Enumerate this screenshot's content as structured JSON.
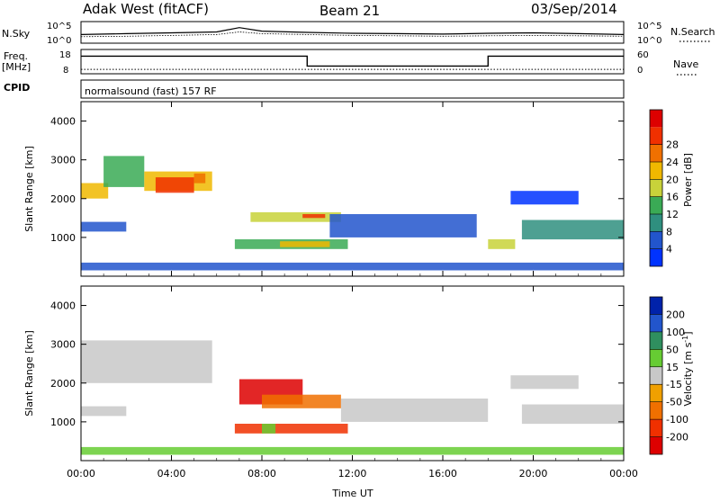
{
  "header": {
    "station": "Adak West (fitACF)",
    "beam": "Beam 21",
    "date": "03/Sep/2014"
  },
  "strip_panels": {
    "nsky_label": "N.Sky",
    "nsky_ticks": [
      "10^5",
      "10^0"
    ],
    "nsearch_label": "N.Search",
    "freq_label_line1": "Freq.",
    "freq_label_line2": "[MHz]",
    "freq_ticks": [
      "18",
      "8"
    ],
    "nave_label": "Nave",
    "nave_ticks": [
      "60",
      "0"
    ],
    "cpid_label": "CPID",
    "cpid_text": "normalsound (fast) 157 RF"
  },
  "colors": {
    "power_scale": [
      "#0033ff",
      "#2255cc",
      "#2f8f7f",
      "#3aaa55",
      "#c8d23a",
      "#f0b800",
      "#f07000",
      "#f03000",
      "#dd0000"
    ],
    "velocity_scale": [
      "#dd0000",
      "#f03000",
      "#f07000",
      "#f0a000",
      "#c8c8c8",
      "#66cc33",
      "#2f8f5f",
      "#2255cc",
      "#0022aa"
    ]
  },
  "chart_data": [
    {
      "type": "line",
      "panel": "sky-noise",
      "ylabel": "N.Sky",
      "x": [
        "00:00",
        "02:00",
        "04:00",
        "06:00",
        "07:00",
        "08:00",
        "10:00",
        "12:00",
        "14:00",
        "16:00",
        "18:00",
        "20:00",
        "22:00",
        "24:00"
      ],
      "series": [
        {
          "values": [
            2.0,
            2.2,
            2.4,
            2.6,
            3.6,
            2.8,
            2.5,
            2.3,
            2.2,
            2.1,
            2.3,
            2.4,
            2.2,
            2.0
          ]
        },
        {
          "values": [
            1.5,
            1.6,
            1.8,
            2.0,
            2.6,
            2.2,
            2.0,
            1.8,
            1.7,
            1.6,
            1.7,
            1.8,
            1.7,
            1.6
          ]
        }
      ],
      "ylim": [
        0,
        5
      ]
    },
    {
      "type": "line",
      "panel": "frequency",
      "ylabel": "Freq. [MHz]",
      "x": [
        0,
        10,
        10,
        18,
        18,
        24
      ],
      "series": [
        {
          "values": [
            15,
            15,
            10.5,
            10.5,
            15,
            15
          ]
        },
        {
          "values": [
            9,
            9,
            9,
            9,
            9,
            9
          ]
        }
      ],
      "ylim": [
        7,
        18
      ]
    },
    {
      "type": "heatmap",
      "panel": "power",
      "ylabel": "Slant Range [km]",
      "colorbar_label": "Power [dB]",
      "colorbar_ticks": [
        "4",
        "8",
        "12",
        "16",
        "20",
        "24",
        "28"
      ],
      "ylim": [
        0,
        4500
      ],
      "y_ticks": [
        "1000",
        "2000",
        "3000",
        "4000"
      ],
      "regions": [
        {
          "t0": 0.0,
          "t1": 1.2,
          "r0": 2000,
          "r1": 2400,
          "level": 5
        },
        {
          "t0": 1.0,
          "t1": 2.8,
          "r0": 2300,
          "r1": 3100,
          "level": 3
        },
        {
          "t0": 2.8,
          "t1": 5.8,
          "r0": 2200,
          "r1": 2700,
          "level": 5
        },
        {
          "t0": 3.3,
          "t1": 5.0,
          "r0": 2150,
          "r1": 2550,
          "level": 7
        },
        {
          "t0": 5.0,
          "t1": 5.5,
          "r0": 2400,
          "r1": 2650,
          "level": 6
        },
        {
          "t0": 0.0,
          "t1": 2.0,
          "r0": 1150,
          "r1": 1400,
          "level": 1
        },
        {
          "t0": 6.8,
          "t1": 11.8,
          "r0": 700,
          "r1": 950,
          "level": 3
        },
        {
          "t0": 8.8,
          "t1": 11.0,
          "r0": 750,
          "r1": 900,
          "level": 5
        },
        {
          "t0": 7.5,
          "t1": 11.5,
          "r0": 1400,
          "r1": 1650,
          "level": 4
        },
        {
          "t0": 9.8,
          "t1": 10.8,
          "r0": 1500,
          "r1": 1600,
          "level": 7
        },
        {
          "t0": 11.0,
          "t1": 17.5,
          "r0": 1000,
          "r1": 1600,
          "level": 1
        },
        {
          "t0": 18.0,
          "t1": 19.2,
          "r0": 700,
          "r1": 950,
          "level": 4
        },
        {
          "t0": 19.5,
          "t1": 24.0,
          "r0": 950,
          "r1": 1450,
          "level": 2
        },
        {
          "t0": 19.0,
          "t1": 22.0,
          "r0": 1850,
          "r1": 2200,
          "level": 0
        },
        {
          "t0": 0.0,
          "t1": 24.0,
          "r0": 150,
          "r1": 350,
          "level": 1
        }
      ]
    },
    {
      "type": "heatmap",
      "panel": "velocity",
      "ylabel": "Slant Range [km]",
      "colorbar_label": "Velocity [m s",
      "colorbar_label_sup": "-1",
      "colorbar_label_end": "]",
      "colorbar_ticks": [
        "-200",
        "-100",
        "-50",
        "-15",
        "15",
        "50",
        "100",
        "200"
      ],
      "ylim": [
        0,
        4500
      ],
      "y_ticks": [
        "1000",
        "2000",
        "3000",
        "4000"
      ],
      "regions": [
        {
          "t0": 0.0,
          "t1": 5.8,
          "r0": 2000,
          "r1": 3100,
          "level": 4
        },
        {
          "t0": 0.0,
          "t1": 2.0,
          "r0": 1150,
          "r1": 1400,
          "level": 4
        },
        {
          "t0": 6.8,
          "t1": 11.8,
          "r0": 700,
          "r1": 950,
          "level": 1
        },
        {
          "t0": 8.0,
          "t1": 8.6,
          "r0": 700,
          "r1": 950,
          "level": 5
        },
        {
          "t0": 7.0,
          "t1": 9.8,
          "r0": 1450,
          "r1": 2100,
          "level": 0
        },
        {
          "t0": 8.0,
          "t1": 11.5,
          "r0": 1350,
          "r1": 1700,
          "level": 2
        },
        {
          "t0": 11.5,
          "t1": 18.0,
          "r0": 1000,
          "r1": 1600,
          "level": 4
        },
        {
          "t0": 19.5,
          "t1": 24.0,
          "r0": 950,
          "r1": 1450,
          "level": 4
        },
        {
          "t0": 19.0,
          "t1": 22.0,
          "r0": 1850,
          "r1": 2200,
          "level": 4
        },
        {
          "t0": 0.0,
          "t1": 24.0,
          "r0": 150,
          "r1": 350,
          "level": 5
        }
      ]
    }
  ],
  "x_axis": {
    "ticks": [
      "00:00",
      "04:00",
      "08:00",
      "12:00",
      "16:00",
      "20:00",
      "00:00"
    ],
    "label": "Time UT"
  }
}
